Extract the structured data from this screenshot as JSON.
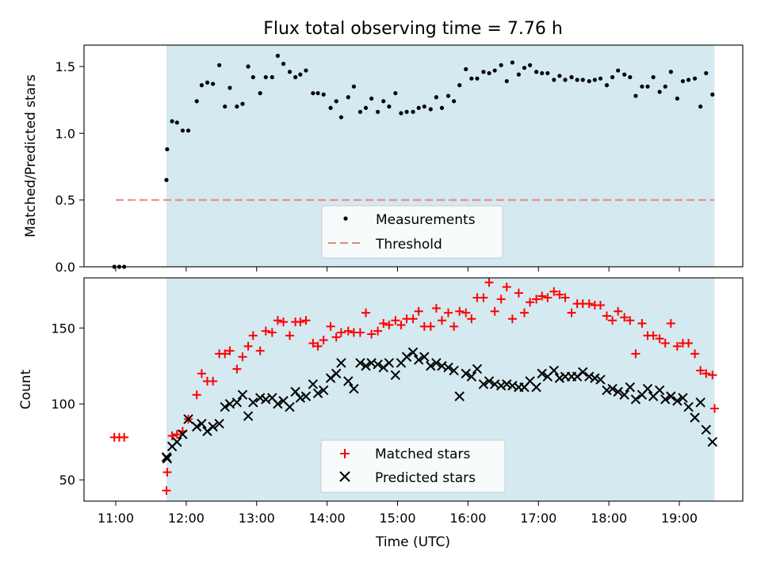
{
  "figure_title": "Flux total observing time = 7.76 h",
  "chart_data": [
    {
      "type": "scatter",
      "panel": "top",
      "title": "Flux total observing time = 7.76 h",
      "ylabel": "Matched/Predicted stars",
      "xlabel": "",
      "xlim": [
        10.55,
        19.9
      ],
      "ylim": [
        0,
        1.66
      ],
      "yticks": [
        0.0,
        0.5,
        1.0,
        1.5
      ],
      "ytick_labels": [
        "0.0",
        "0.5",
        "1.0",
        "1.5"
      ],
      "xticks": [
        11,
        12,
        13,
        14,
        15,
        16,
        17,
        18,
        19
      ],
      "grid": false,
      "legend_position": "bottom-center",
      "shaded_interval": {
        "x": [
          11.72,
          19.5
        ],
        "color": "#d4e9f0"
      },
      "threshold": {
        "name": "Threshold",
        "y": 0.5,
        "x": [
          11.0,
          19.5
        ],
        "color": "#f08080",
        "style": "dashed"
      },
      "series": [
        {
          "name": "Measurements",
          "marker": "dot",
          "color": "#000000",
          "x": [
            10.98,
            11.05,
            11.12,
            11.72,
            11.73,
            11.8,
            11.87,
            11.95,
            12.03,
            12.15,
            12.22,
            12.3,
            12.38,
            12.47,
            12.55,
            12.62,
            12.72,
            12.8,
            12.88,
            12.95,
            13.05,
            13.13,
            13.22,
            13.3,
            13.38,
            13.47,
            13.55,
            13.62,
            13.7,
            13.8,
            13.87,
            13.95,
            14.05,
            14.13,
            14.2,
            14.3,
            14.38,
            14.47,
            14.55,
            14.63,
            14.72,
            14.8,
            14.88,
            14.97,
            15.05,
            15.13,
            15.22,
            15.3,
            15.38,
            15.47,
            15.55,
            15.63,
            15.72,
            15.8,
            15.88,
            15.97,
            16.05,
            16.13,
            16.22,
            16.3,
            16.38,
            16.47,
            16.55,
            16.63,
            16.72,
            16.8,
            16.88,
            16.97,
            17.05,
            17.13,
            17.22,
            17.3,
            17.38,
            17.47,
            17.55,
            17.63,
            17.72,
            17.8,
            17.88,
            17.97,
            18.05,
            18.13,
            18.22,
            18.3,
            18.38,
            18.47,
            18.55,
            18.63,
            18.72,
            18.8,
            18.88,
            18.97,
            19.05,
            19.13,
            19.22,
            19.3,
            19.38,
            19.47
          ],
          "y": [
            0.0,
            0.0,
            0.0,
            0.65,
            0.88,
            1.09,
            1.08,
            1.02,
            1.02,
            1.24,
            1.36,
            1.38,
            1.37,
            1.51,
            1.2,
            1.34,
            1.2,
            1.22,
            1.5,
            1.42,
            1.3,
            1.42,
            1.42,
            1.58,
            1.52,
            1.46,
            1.42,
            1.44,
            1.47,
            1.3,
            1.3,
            1.29,
            1.19,
            1.24,
            1.12,
            1.27,
            1.35,
            1.16,
            1.19,
            1.26,
            1.16,
            1.24,
            1.2,
            1.3,
            1.15,
            1.16,
            1.16,
            1.19,
            1.2,
            1.18,
            1.27,
            1.19,
            1.28,
            1.24,
            1.36,
            1.48,
            1.41,
            1.41,
            1.46,
            1.45,
            1.47,
            1.51,
            1.39,
            1.53,
            1.44,
            1.49,
            1.51,
            1.46,
            1.45,
            1.45,
            1.4,
            1.43,
            1.4,
            1.42,
            1.4,
            1.4,
            1.39,
            1.4,
            1.41,
            1.36,
            1.42,
            1.47,
            1.44,
            1.42,
            1.28,
            1.35,
            1.35,
            1.42,
            1.31,
            1.35,
            1.46,
            1.26,
            1.39,
            1.4,
            1.41,
            1.2,
            1.45,
            1.29
          ]
        }
      ]
    },
    {
      "type": "scatter",
      "panel": "bottom",
      "ylabel": "Count",
      "xlabel": "Time (UTC)",
      "xlim": [
        10.55,
        19.9
      ],
      "ylim": [
        36,
        183
      ],
      "yticks": [
        50,
        100,
        150
      ],
      "ytick_labels": [
        "50",
        "100",
        "150"
      ],
      "xticks": [
        11,
        12,
        13,
        14,
        15,
        16,
        17,
        18,
        19
      ],
      "xtick_labels": [
        "11:00",
        "12:00",
        "13:00",
        "14:00",
        "15:00",
        "16:00",
        "17:00",
        "18:00",
        "19:00"
      ],
      "grid": false,
      "legend_position": "bottom-center",
      "shaded_interval": {
        "x": [
          11.72,
          19.5
        ],
        "color": "#d4e9f0"
      },
      "series": [
        {
          "name": "Matched stars",
          "marker": "plus",
          "color": "#ff0000",
          "x": [
            10.98,
            11.05,
            11.12,
            11.72,
            11.73,
            11.8,
            11.87,
            11.95,
            12.03,
            12.15,
            12.22,
            12.3,
            12.38,
            12.47,
            12.55,
            12.62,
            12.72,
            12.8,
            12.88,
            12.95,
            13.05,
            13.13,
            13.22,
            13.3,
            13.38,
            13.47,
            13.55,
            13.62,
            13.7,
            13.8,
            13.87,
            13.95,
            14.05,
            14.13,
            14.2,
            14.3,
            14.38,
            14.47,
            14.55,
            14.63,
            14.72,
            14.8,
            14.88,
            14.97,
            15.05,
            15.13,
            15.22,
            15.3,
            15.38,
            15.47,
            15.55,
            15.63,
            15.72,
            15.8,
            15.88,
            15.97,
            16.05,
            16.13,
            16.22,
            16.3,
            16.38,
            16.47,
            16.55,
            16.63,
            16.72,
            16.8,
            16.88,
            16.97,
            17.05,
            17.13,
            17.22,
            17.3,
            17.38,
            17.47,
            17.55,
            17.63,
            17.72,
            17.8,
            17.88,
            17.97,
            18.05,
            18.13,
            18.22,
            18.3,
            18.38,
            18.47,
            18.55,
            18.63,
            18.72,
            18.8,
            18.88,
            18.97,
            19.05,
            19.13,
            19.22,
            19.3,
            19.38,
            19.47,
            19.5
          ],
          "y": [
            78,
            78,
            78,
            43,
            55,
            79,
            80,
            82,
            90,
            106,
            120,
            115,
            115,
            133,
            133,
            135,
            123,
            131,
            138,
            145,
            135,
            148,
            147,
            155,
            154,
            145,
            154,
            154,
            155,
            140,
            138,
            142,
            151,
            144,
            147,
            148,
            147,
            147,
            160,
            146,
            148,
            153,
            152,
            155,
            152,
            156,
            156,
            161,
            151,
            151,
            163,
            155,
            160,
            151,
            161,
            160,
            156,
            170,
            170,
            180,
            161,
            169,
            177,
            156,
            173,
            160,
            167,
            169,
            171,
            170,
            174,
            172,
            170,
            160,
            166,
            166,
            166,
            165,
            165,
            158,
            155,
            161,
            157,
            155,
            133,
            153,
            145,
            145,
            143,
            140,
            153,
            138,
            140,
            140,
            133,
            122,
            120,
            119,
            97
          ]
        },
        {
          "name": "Predicted stars",
          "marker": "x",
          "color": "#000000",
          "x": [
            11.72,
            11.73,
            11.8,
            11.87,
            11.95,
            12.03,
            12.15,
            12.22,
            12.3,
            12.38,
            12.47,
            12.55,
            12.62,
            12.72,
            12.8,
            12.88,
            12.95,
            13.05,
            13.13,
            13.22,
            13.3,
            13.38,
            13.47,
            13.55,
            13.62,
            13.7,
            13.8,
            13.87,
            13.95,
            14.05,
            14.13,
            14.2,
            14.3,
            14.38,
            14.47,
            14.55,
            14.63,
            14.72,
            14.8,
            14.88,
            14.97,
            15.05,
            15.13,
            15.22,
            15.3,
            15.38,
            15.47,
            15.55,
            15.63,
            15.72,
            15.8,
            15.88,
            15.97,
            16.05,
            16.13,
            16.22,
            16.3,
            16.38,
            16.47,
            16.55,
            16.63,
            16.72,
            16.8,
            16.88,
            16.97,
            17.05,
            17.13,
            17.22,
            17.3,
            17.38,
            17.47,
            17.55,
            17.63,
            17.72,
            17.8,
            17.88,
            17.97,
            18.05,
            18.13,
            18.22,
            18.3,
            18.38,
            18.47,
            18.55,
            18.63,
            18.72,
            18.8,
            18.88,
            18.97,
            19.05,
            19.13,
            19.22,
            19.3,
            19.38,
            19.47
          ],
          "y": [
            65,
            64,
            72,
            75,
            80,
            90,
            85,
            87,
            82,
            85,
            87,
            98,
            100,
            101,
            106,
            92,
            101,
            104,
            103,
            104,
            100,
            102,
            98,
            108,
            104,
            105,
            113,
            107,
            109,
            117,
            120,
            127,
            115,
            110,
            127,
            125,
            127,
            126,
            124,
            127,
            119,
            127,
            131,
            134,
            129,
            131,
            125,
            127,
            125,
            124,
            122,
            105,
            120,
            118,
            123,
            113,
            115,
            113,
            112,
            113,
            112,
            111,
            111,
            115,
            111,
            120,
            118,
            122,
            117,
            118,
            118,
            118,
            121,
            118,
            117,
            116,
            109,
            110,
            108,
            106,
            111,
            103,
            106,
            110,
            105,
            109,
            103,
            105,
            102,
            104,
            98,
            91,
            101,
            83,
            75
          ]
        }
      ]
    }
  ]
}
